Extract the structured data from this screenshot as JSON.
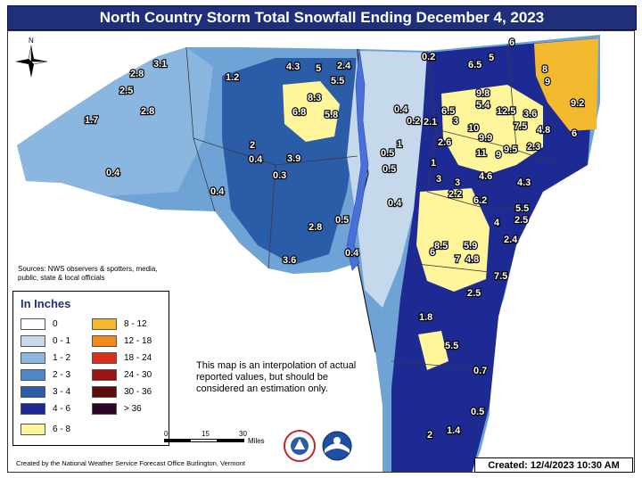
{
  "title": "North Country Storm Total Snowfall Ending December 4, 2023",
  "compass": {
    "north_label": "N"
  },
  "sources": "Sources: NWS observers & spotters, media, public, state & local officials",
  "legend": {
    "title": "In Inches",
    "items": [
      {
        "label": "0",
        "color": "#ffffff"
      },
      {
        "label": "0 - 1",
        "color": "#c6d9ec"
      },
      {
        "label": "1 - 2",
        "color": "#8bb6e0"
      },
      {
        "label": "2 - 3",
        "color": "#4f86c6"
      },
      {
        "label": "3 - 4",
        "color": "#2a5ca8"
      },
      {
        "label": "4 - 6",
        "color": "#1e2a94"
      },
      {
        "label": "6 - 8",
        "color": "#fff59a"
      },
      {
        "label": "8 - 12",
        "color": "#f2b92e"
      },
      {
        "label": "12 - 18",
        "color": "#f08a1c"
      },
      {
        "label": "18 - 24",
        "color": "#d9301e"
      },
      {
        "label": "24 - 30",
        "color": "#9c1414"
      },
      {
        "label": "30 - 36",
        "color": "#5c0a0a"
      },
      {
        "label": "> 36",
        "color": "#2a0526"
      }
    ]
  },
  "note": "This map is an interpolation of actual reported values, but should be considered an estimation only.",
  "scale": {
    "labels": [
      "0",
      "15",
      "30"
    ],
    "unit": "Miles"
  },
  "credit": "Created by the National Weather Service Forecast Office Burlington, Vermont",
  "created": "Created: 12/4/2023 10:30 AM",
  "snowfall_reports": [
    "3.1",
    "2.8",
    "2.5",
    "1.7",
    "2.8",
    "0.4",
    "1.2",
    "4.3",
    "5",
    "2.4",
    "5.5",
    "8.3",
    "6.8",
    "5.8",
    "2",
    "0.4",
    "3.9",
    "0.3",
    "0.4",
    "2.8",
    "3.6",
    "0.5",
    "0.4",
    "0.4",
    "0.2",
    "6.5",
    "5",
    "6",
    "8",
    "9",
    "9.8",
    "5.4",
    "12.5",
    "3.6",
    "9.2",
    "6.5",
    "0.4",
    "0.2",
    "2.1",
    "3",
    "10",
    "7.5",
    "4.8",
    "6",
    "0.5",
    "1",
    "2.6",
    "9.9",
    "11",
    "9",
    "9.5",
    "2.3",
    "0.5",
    "1",
    "3",
    "4.6",
    "4.3",
    "3",
    "2.2",
    "6.2",
    "5.5",
    "2.5",
    "4",
    "8.5",
    "5.9",
    "2.4",
    "6",
    "7",
    "4.8",
    "7.5",
    "2.5",
    "1.8",
    "5.5",
    "0.7",
    "0.5",
    "2",
    "1.4"
  ]
}
